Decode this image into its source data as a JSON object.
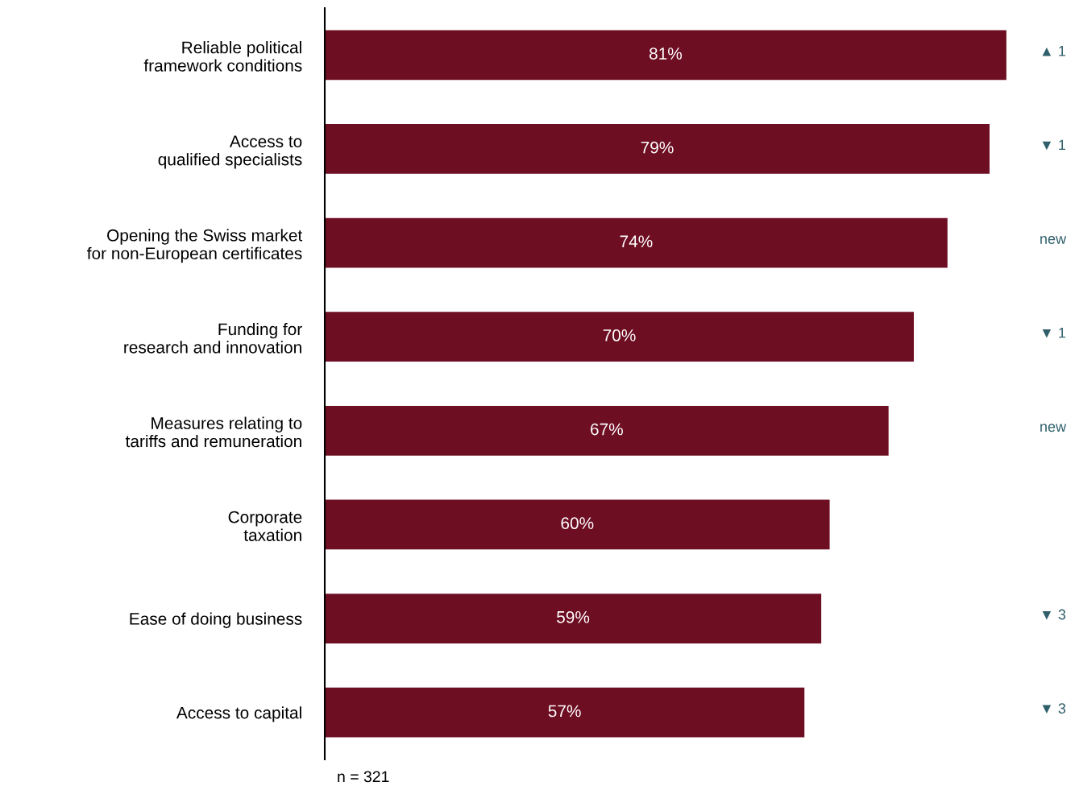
{
  "chart_data": {
    "type": "bar",
    "orientation": "horizontal",
    "categories": [
      "Reliable political\nframework conditions",
      "Access to\nqualified specialists",
      "Opening the Swiss market\nfor non-European certificates",
      "Funding for\nresearch and innovation",
      "Measures relating to\ntariffs and remuneration",
      "Corporate\ntaxation",
      "Ease of doing business",
      "Access to capital"
    ],
    "values": [
      81,
      79,
      74,
      70,
      67,
      60,
      59,
      57
    ],
    "value_labels": [
      "81%",
      "79%",
      "74%",
      "70%",
      "67%",
      "60%",
      "59%",
      "57%"
    ],
    "color": "#6e0e23",
    "grid": false,
    "legend": false,
    "tick_labels": "y",
    "y2_categories": [
      "▲ 1",
      "▼ 1",
      "new",
      "▼ 1",
      "new",
      null,
      "▼ 3",
      "▼ 3"
    ],
    "annotations": [
      "n = 321"
    ]
  }
}
